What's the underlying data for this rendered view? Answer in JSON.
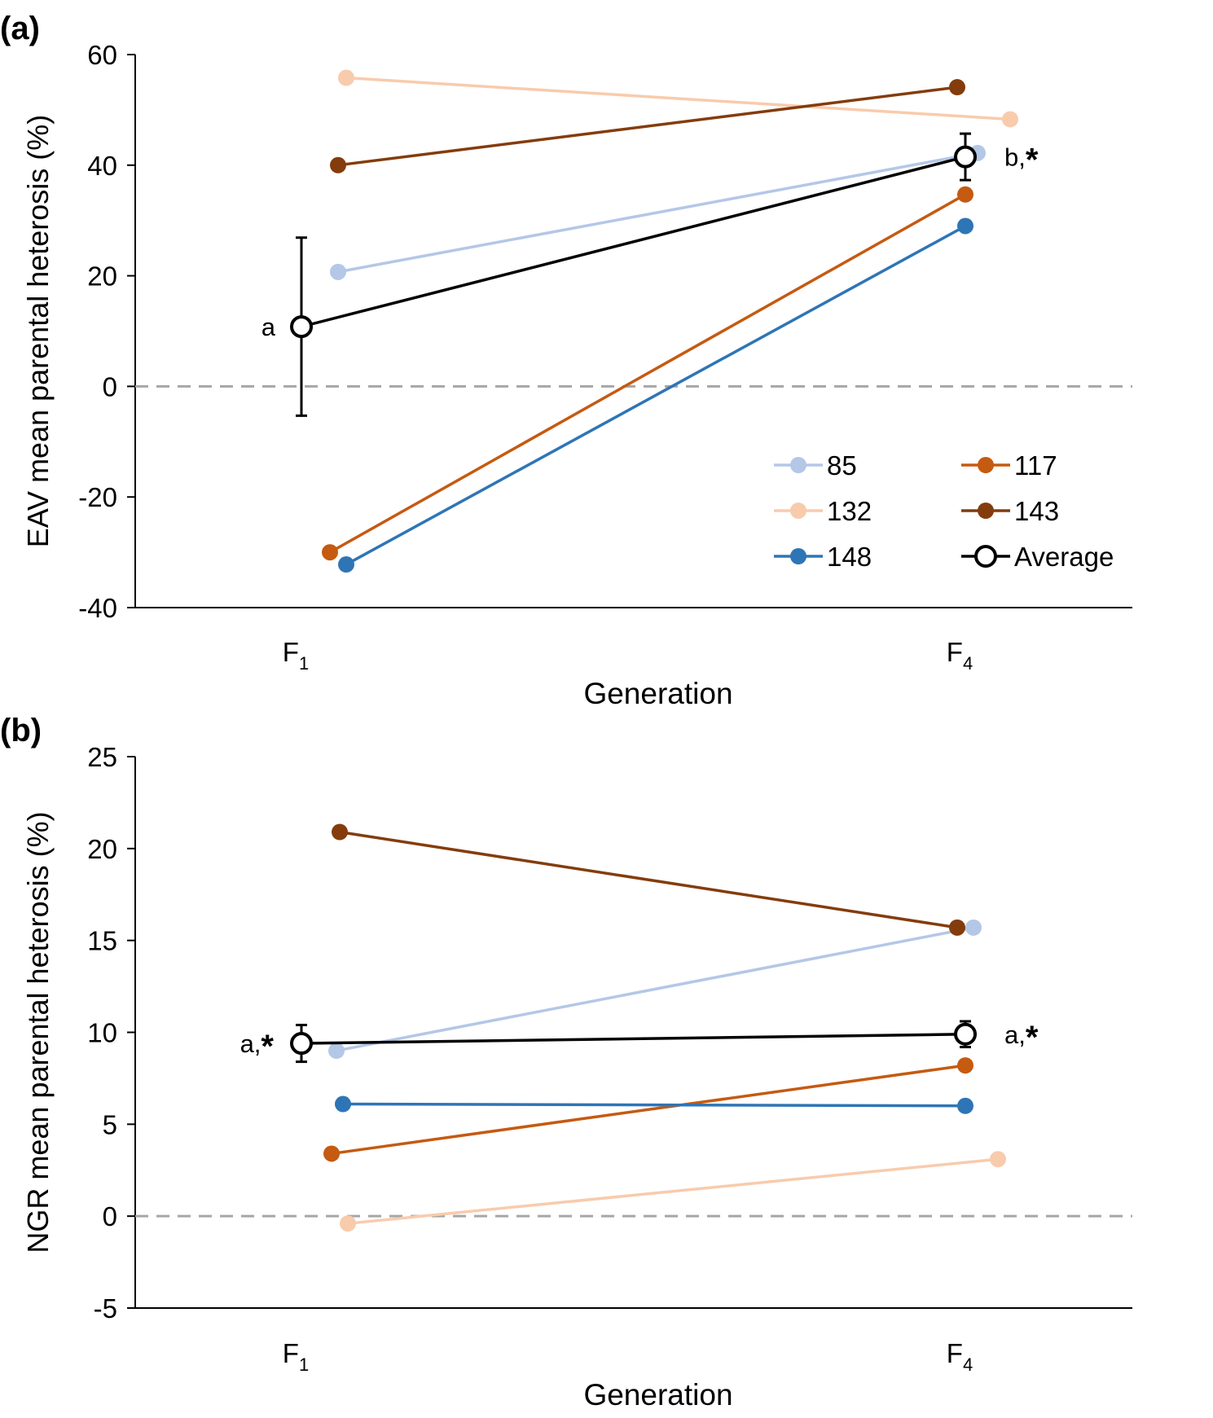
{
  "chart_data": [
    {
      "panel_label": "(a)",
      "type": "line",
      "categories": [
        "F1",
        "F4"
      ],
      "x_tick_labels": [
        {
          "base": "F",
          "sub": "1"
        },
        {
          "base": "F",
          "sub": "4"
        }
      ],
      "xlabel": "Generation",
      "ylabel": "EAV mean parental heterosis (%)",
      "ylim": [
        -40,
        60
      ],
      "yticks": [
        -40,
        -20,
        0,
        20,
        40,
        60
      ],
      "reference_line": {
        "y": 0,
        "style": "dashed",
        "color": "#a6a6a6"
      },
      "series": [
        {
          "name": "85",
          "color": "#b4c7e7",
          "values": [
            20.7,
            42.2
          ]
        },
        {
          "name": "132",
          "color": "#f8cbad",
          "values": [
            55.8,
            48.3
          ]
        },
        {
          "name": "143",
          "color": "#843c0c",
          "values": [
            40.0,
            54.1
          ]
        },
        {
          "name": "117",
          "color": "#c55a11",
          "values": [
            -30.0,
            34.7
          ]
        },
        {
          "name": "148",
          "color": "#2e75b6",
          "values": [
            -32.2,
            29.0
          ]
        },
        {
          "name": "Average",
          "color": "#000000",
          "marker": "open-circle",
          "values": [
            10.8,
            41.5
          ],
          "error": [
            16.1,
            4.2
          ]
        }
      ],
      "annotations": [
        {
          "series": "Average",
          "point": 0,
          "text": "a",
          "star": false
        },
        {
          "series": "Average",
          "point": 1,
          "text": "b,",
          "star": true
        }
      ],
      "legend": {
        "placement": "bottom-right",
        "columns": 2,
        "order": [
          "85",
          "117",
          "132",
          "143",
          "148",
          "Average"
        ]
      }
    },
    {
      "panel_label": "(b)",
      "type": "line",
      "categories": [
        "F1",
        "F4"
      ],
      "x_tick_labels": [
        {
          "base": "F",
          "sub": "1"
        },
        {
          "base": "F",
          "sub": "4"
        }
      ],
      "xlabel": "Generation",
      "ylabel": "NGR mean parental heterosis (%)",
      "ylim": [
        -5,
        25
      ],
      "yticks": [
        -5,
        0,
        5,
        10,
        15,
        20,
        25
      ],
      "reference_line": {
        "y": 0,
        "style": "dashed",
        "color": "#a6a6a6"
      },
      "series": [
        {
          "name": "85",
          "color": "#b4c7e7",
          "values": [
            9.0,
            15.7
          ]
        },
        {
          "name": "132",
          "color": "#f8cbad",
          "values": [
            -0.4,
            3.1
          ]
        },
        {
          "name": "143",
          "color": "#843c0c",
          "values": [
            20.9,
            15.7
          ]
        },
        {
          "name": "117",
          "color": "#c55a11",
          "values": [
            3.4,
            8.2
          ]
        },
        {
          "name": "148",
          "color": "#2e75b6",
          "values": [
            6.1,
            6.0
          ]
        },
        {
          "name": "Average",
          "color": "#000000",
          "marker": "open-circle",
          "values": [
            9.4,
            9.9
          ],
          "error": [
            1.0,
            0.7
          ]
        }
      ],
      "annotations": [
        {
          "series": "Average",
          "point": 0,
          "text": "a,",
          "star": true
        },
        {
          "series": "Average",
          "point": 1,
          "text": "a,",
          "star": true
        }
      ]
    }
  ]
}
